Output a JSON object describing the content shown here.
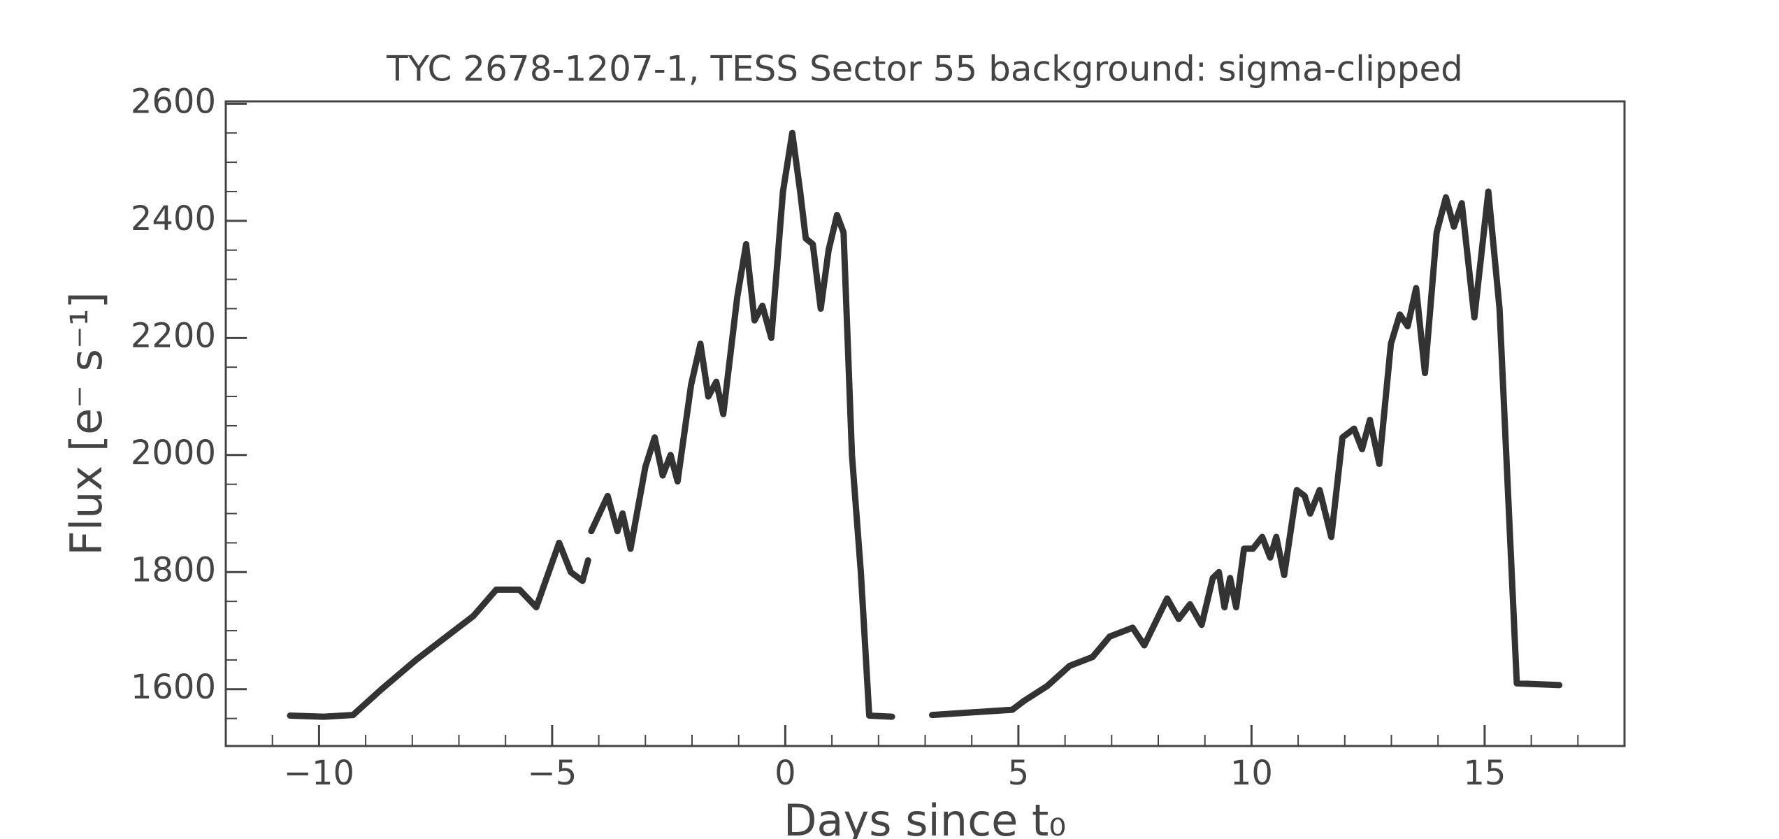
{
  "chart_data": {
    "type": "line",
    "title": "TYC 2678-1207-1, TESS Sector 55 background: sigma-clipped",
    "xlabel": "Days since t₀",
    "ylabel": "Flux [e⁻ s⁻¹]",
    "color": "#333333",
    "xlim": [
      -12,
      18
    ],
    "ylim": [
      1503,
      2604
    ],
    "xticks": [
      {
        "value": -10,
        "label": "−10"
      },
      {
        "value": -5,
        "label": "−5"
      },
      0,
      5,
      10,
      15
    ],
    "yticks": [
      1600,
      1800,
      2000,
      2200,
      2400,
      2600
    ],
    "xminorticks": [
      -11,
      -9,
      -8,
      -7,
      -6,
      -4,
      -3,
      -2,
      -1,
      1,
      2,
      3,
      4,
      6,
      7,
      8,
      9,
      11,
      12,
      13,
      14,
      16,
      17
    ],
    "yminorticks": [
      1550,
      1650,
      1700,
      1750,
      1850,
      1900,
      1950,
      2050,
      2100,
      2150,
      2250,
      2300,
      2350,
      2450,
      2500,
      2550
    ],
    "x": [
      -10.62,
      -9.9,
      -9.27,
      -8.66,
      -7.92,
      -7.43,
      -6.69,
      -6.2,
      -5.7,
      -5.34,
      -4.85,
      -4.6,
      -4.35,
      -4.23,
      -4.2,
      -4.16,
      -3.81,
      -3.6,
      -3.49,
      -3.32,
      -3.0,
      -2.8,
      -2.63,
      -2.46,
      -2.31,
      -2.02,
      -1.82,
      -1.65,
      -1.48,
      -1.33,
      -1.03,
      -0.84,
      -0.66,
      -0.49,
      -0.3,
      -0.05,
      0.15,
      0.32,
      0.44,
      0.59,
      0.76,
      0.93,
      1.11,
      1.25,
      1.43,
      1.62,
      1.8,
      2.29,
      2.7,
      3.15,
      4.87,
      5.12,
      5.61,
      6.1,
      6.59,
      6.96,
      7.45,
      7.7,
      8.19,
      8.44,
      8.68,
      8.93,
      9.17,
      9.3,
      9.42,
      9.54,
      9.67,
      9.84,
      10.03,
      10.23,
      10.4,
      10.53,
      10.7,
      10.97,
      11.14,
      11.26,
      11.46,
      11.71,
      11.95,
      12.2,
      12.37,
      12.54,
      12.74,
      12.99,
      13.18,
      13.35,
      13.53,
      13.72,
      13.97,
      14.17,
      14.34,
      14.51,
      14.78,
      15.08,
      15.32,
      15.69,
      16.6
    ],
    "values": [
      1555,
      1553,
      1556,
      1600,
      1650,
      1680,
      1725,
      1770,
      1770,
      1740,
      1850,
      1800,
      1785,
      1820,
      null,
      1870,
      1930,
      1870,
      1900,
      1840,
      1980,
      2030,
      1965,
      2000,
      1955,
      2120,
      2190,
      2100,
      2125,
      2070,
      2270,
      2360,
      2230,
      2255,
      2200,
      2450,
      2550,
      2450,
      2370,
      2360,
      2250,
      2350,
      2410,
      2380,
      2000,
      1800,
      1555,
      1553,
      null,
      1556,
      1565,
      1580,
      1605,
      1640,
      1655,
      1690,
      1705,
      1675,
      1755,
      1720,
      1745,
      1710,
      1790,
      1800,
      1740,
      1790,
      1740,
      1840,
      1840,
      1860,
      1825,
      1860,
      1795,
      1940,
      1930,
      1900,
      1940,
      1860,
      2030,
      2045,
      2010,
      2060,
      1985,
      2190,
      2240,
      2220,
      2285,
      2140,
      2380,
      2440,
      2390,
      2430,
      2235,
      2450,
      2250,
      1610,
      1607
    ]
  }
}
